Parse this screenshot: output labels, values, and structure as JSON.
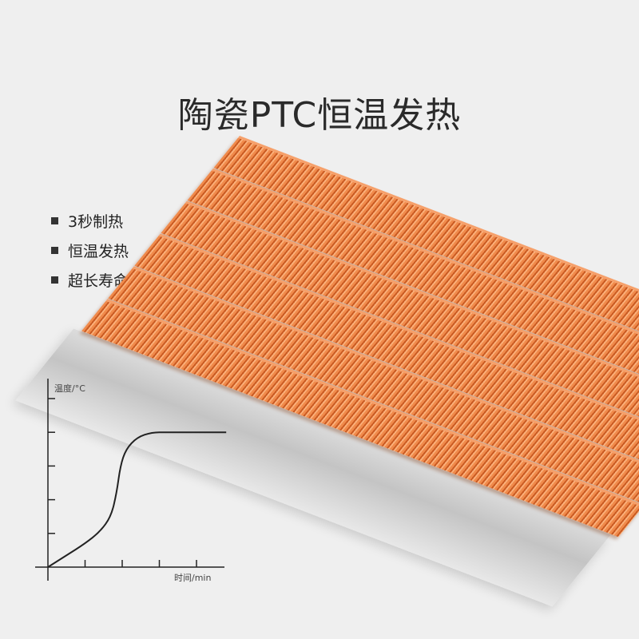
{
  "title": "陶瓷PTC恒温发热",
  "features": [
    "3秒制热",
    "恒温发热",
    "超长寿命"
  ],
  "colors": {
    "fin": "#f08a4b",
    "base": "#d4d4d4",
    "background": "#efefef"
  },
  "chart_data": {
    "type": "line",
    "ylabel": "温度/°C",
    "xlabel": "时间/min",
    "x_ticks": 4,
    "y_ticks": 5,
    "xlim": [
      0,
      4.8
    ],
    "ylim": [
      0,
      5.6
    ],
    "series": [
      {
        "x": [
          0,
          0.5,
          1,
          1.4,
          1.7,
          1.85,
          1.95,
          2.1,
          2.4,
          2.8,
          3.2,
          4.8
        ],
        "y": [
          0,
          0.35,
          0.7,
          1.05,
          1.5,
          2.2,
          3.0,
          3.5,
          3.85,
          4,
          4,
          4
        ]
      }
    ]
  }
}
